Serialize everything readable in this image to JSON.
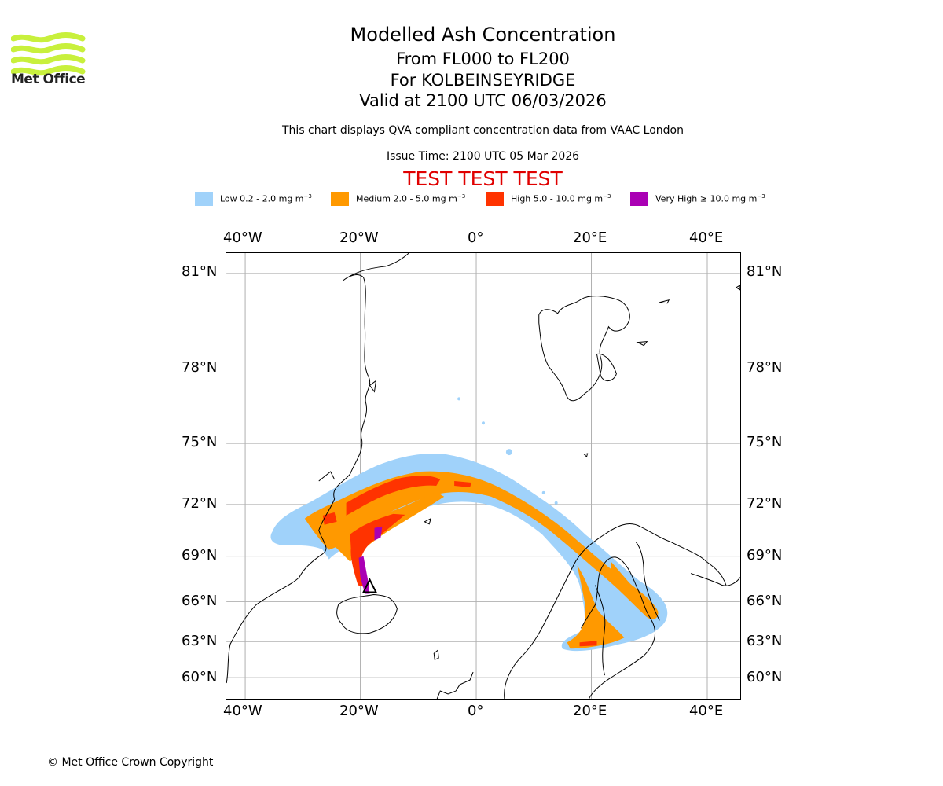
{
  "header": {
    "title": "Modelled Ash Concentration",
    "level_range": "From FL000 to FL200",
    "volcano_line": "For KOLBEINSEYRIDGE",
    "valid_time": "Valid at 2100 UTC 06/03/2026",
    "description": "This chart displays QVA compliant concentration data from VAAC London",
    "issue_time": "Issue Time: 2100 UTC 05 Mar 2026",
    "test_banner": "TEST TEST TEST"
  },
  "logo": {
    "text": "Met Office",
    "color": "#c8f03c"
  },
  "legend": [
    {
      "label": "Low 0.2 - 2.0 mg m",
      "unit_exp": "−3",
      "color": "#a0d2fa"
    },
    {
      "label": "Medium 2.0 - 5.0 mg m",
      "unit_exp": "−3",
      "color": "#ff9900"
    },
    {
      "label": "High 5.0 - 10.0 mg m",
      "unit_exp": "−3",
      "color": "#ff3300"
    },
    {
      "label": "Very High  ≥  10.0 mg m",
      "unit_exp": "−3",
      "color": "#aa00b4"
    }
  ],
  "map": {
    "lon_ticks": [
      "40°W",
      "20°W",
      "0°",
      "20°E",
      "40°E"
    ],
    "lat_ticks": [
      "81°N",
      "78°N",
      "75°N",
      "72°N",
      "69°N",
      "66°N",
      "63°N",
      "60°N"
    ],
    "volcano_marker": "triangle-marker"
  },
  "footer": {
    "copyright": "© Met Office Crown Copyright"
  }
}
